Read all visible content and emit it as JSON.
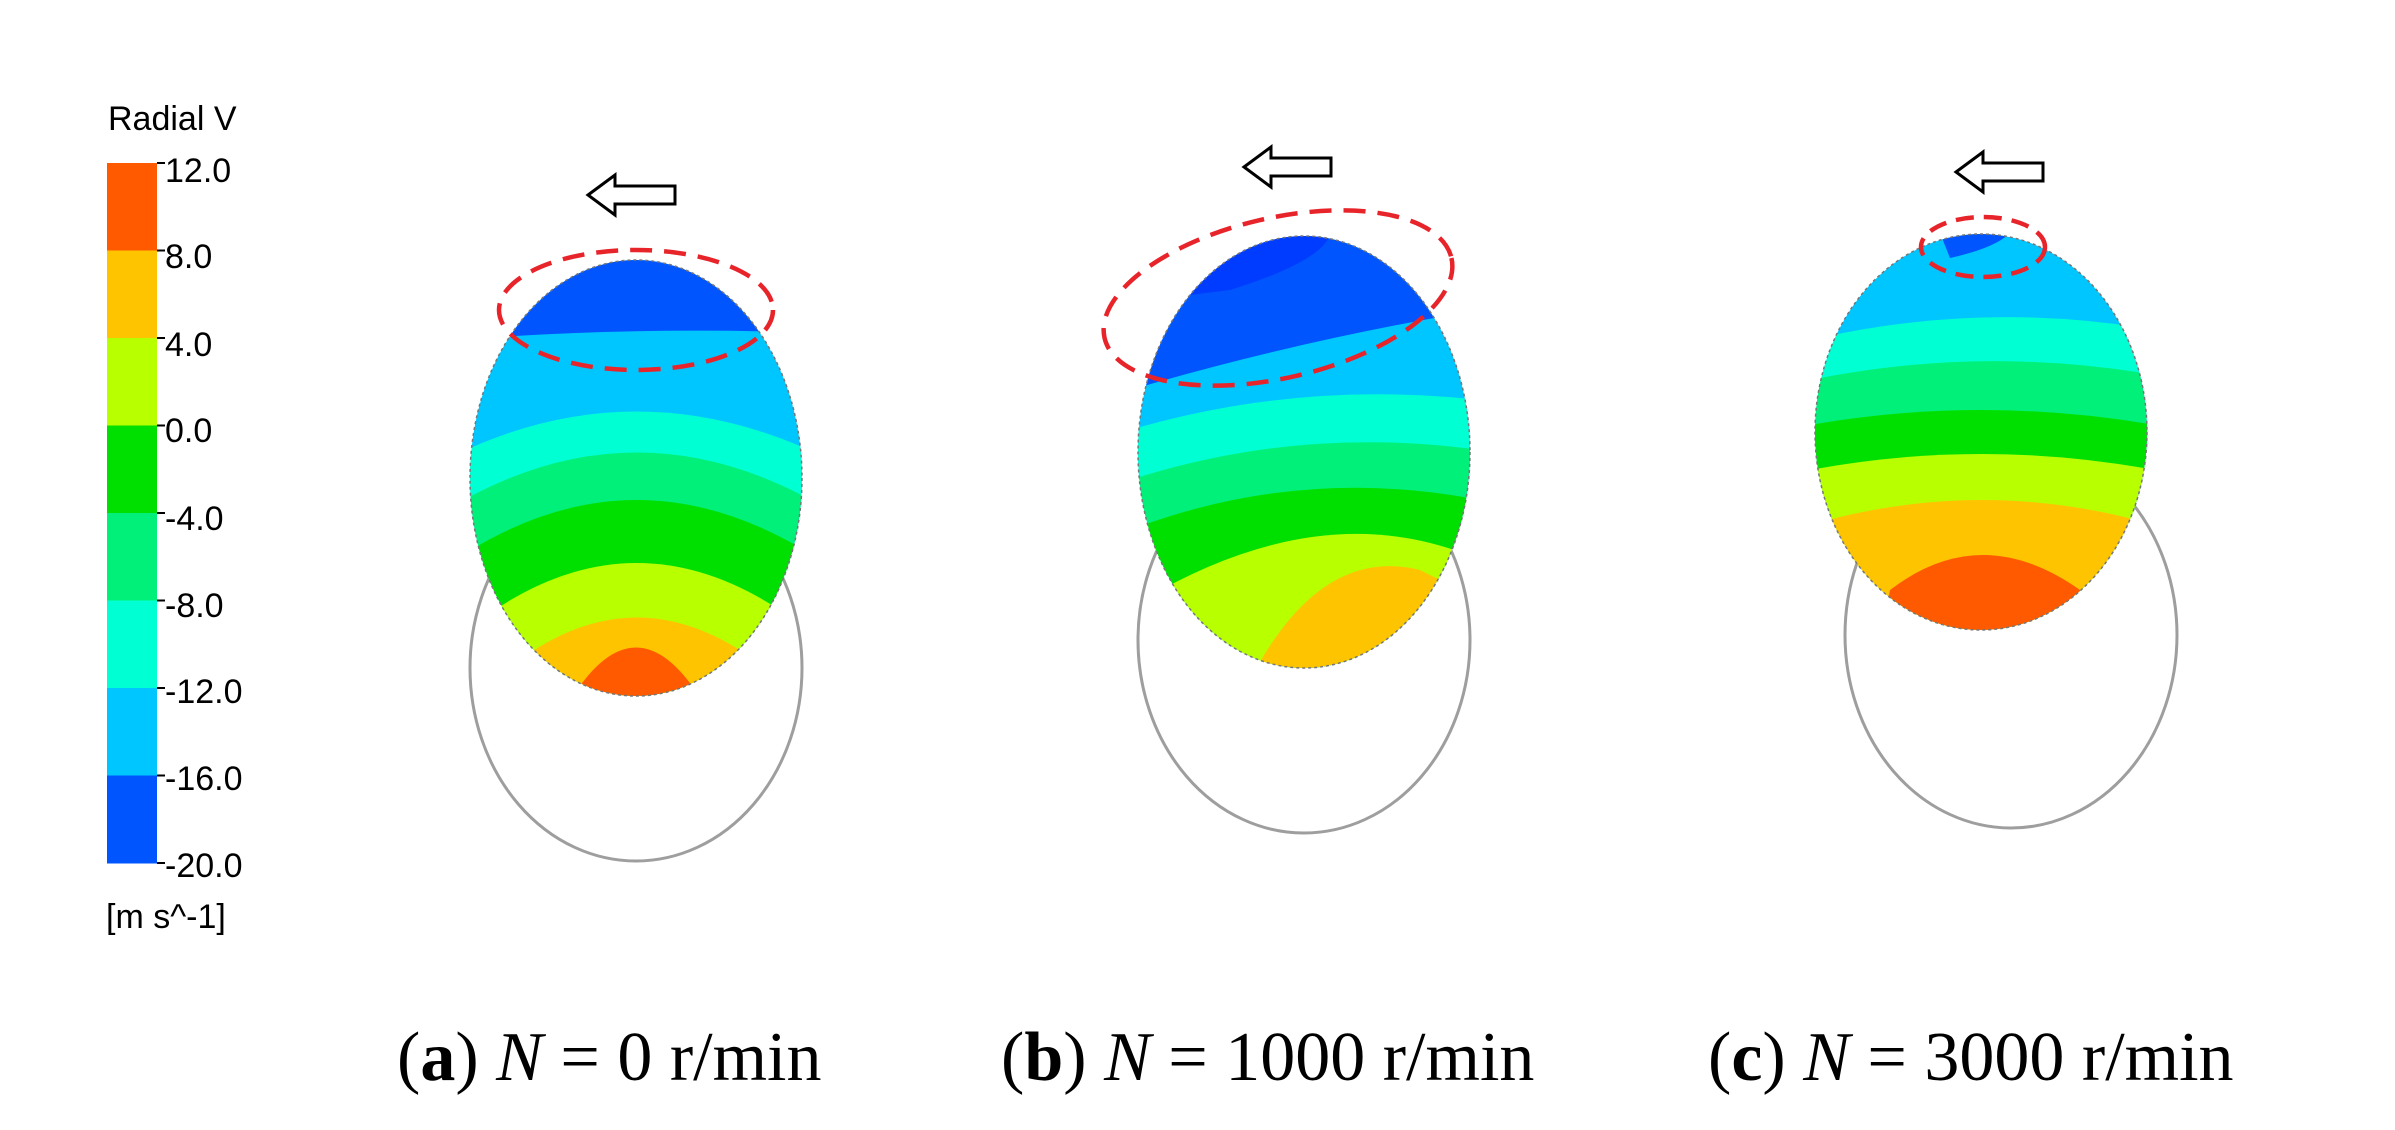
{
  "legend": {
    "title": "Radial V",
    "unit": "[m s^-1]",
    "ticks": [
      "12.0",
      "8.0",
      "4.0",
      "0.0",
      "-4.0",
      "-8.0",
      "-12.0",
      "-16.0",
      "-20.0"
    ],
    "band_colors": [
      "#ff5a00",
      "#ffc400",
      "#b8ff00",
      "#00e000",
      "#00f07a",
      "#00ffd2",
      "#00c6ff",
      "#0055ff"
    ],
    "top_band_color": "#ff5a00",
    "bottom_band_color": "#0055ff"
  },
  "panels": [
    {
      "id": "a",
      "letter": "a",
      "symbol": "N",
      "eq": " = ",
      "value": "0 r/min"
    },
    {
      "id": "b",
      "letter": "b",
      "symbol": "N",
      "eq": " = ",
      "value": "1000 r/min"
    },
    {
      "id": "c",
      "letter": "c",
      "symbol": "N",
      "eq": " = ",
      "value": "3000 r/min"
    }
  ],
  "colors": {
    "highlight_ellipse": "#e8242b",
    "outline": "#9e9e9e",
    "arrow_stroke": "#000000"
  },
  "icons": {
    "direction_arrow": "left-arrow-icon"
  }
}
